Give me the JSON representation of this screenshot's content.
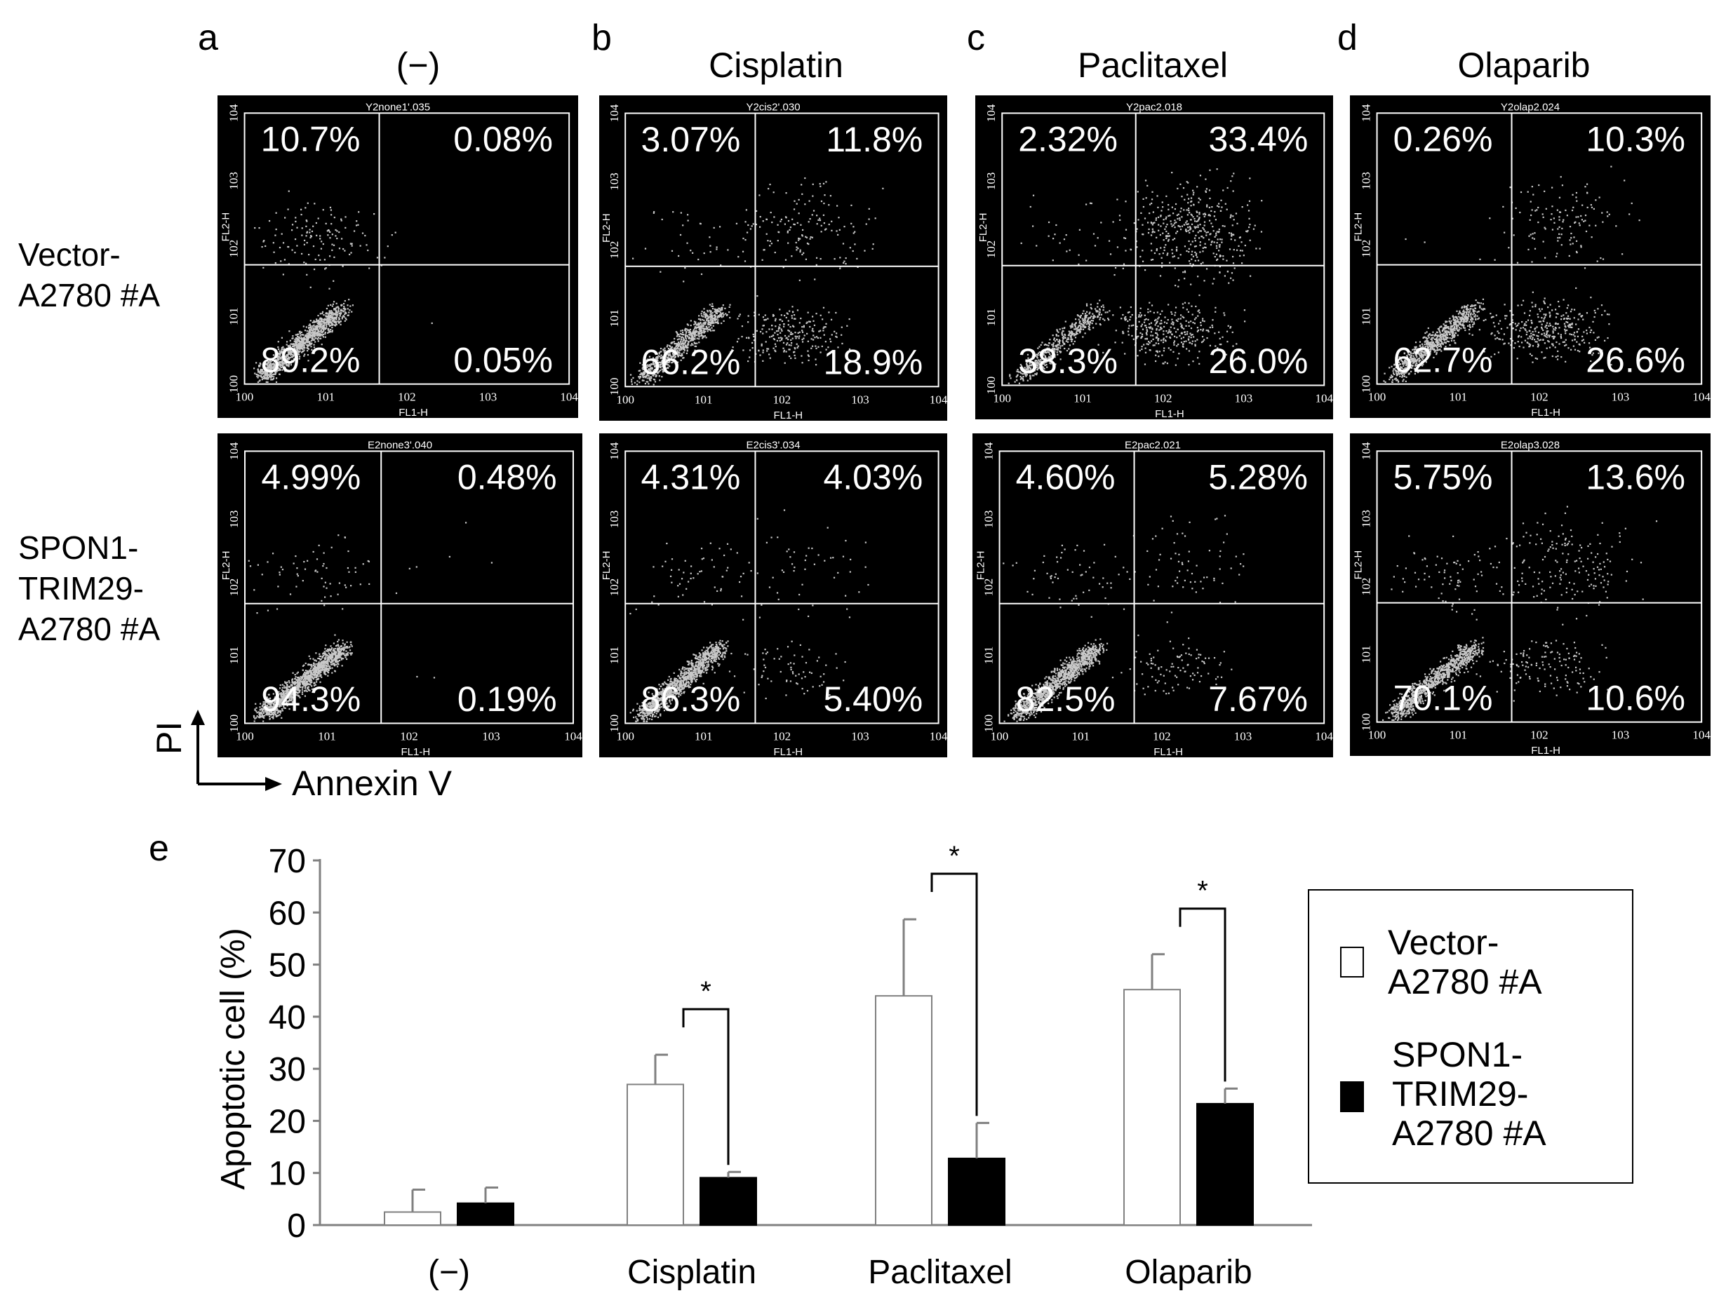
{
  "panel_letters": [
    "a",
    "b",
    "c",
    "d",
    "e"
  ],
  "column_titles": [
    "(−)",
    "Cisplatin",
    "Paclitaxel",
    "Olaparib"
  ],
  "row_labels": [
    "Vector-\nA2780 #A",
    "SPON1-\nTRIM29-\nA2780 #A"
  ],
  "axis_indicator": {
    "y": "PI",
    "x": "Annexin V"
  },
  "flow_axes": {
    "y_label": "FL2-H",
    "x_label": "FL1-H",
    "tick_base": "10",
    "tick_exponents": [
      "0",
      "1",
      "2",
      "3",
      "4"
    ]
  },
  "flow_panels": [
    {
      "sample": "Y2none1'.035",
      "quadrants": {
        "ul": "10.7%",
        "ur": "0.08%",
        "ll": "89.2%",
        "lr": "0.05%"
      }
    },
    {
      "sample": "Y2cis2'.030",
      "quadrants": {
        "ul": "3.07%",
        "ur": "11.8%",
        "ll": "66.2%",
        "lr": "18.9%"
      }
    },
    {
      "sample": "Y2pac2.018",
      "quadrants": {
        "ul": "2.32%",
        "ur": "33.4%",
        "ll": "38.3%",
        "lr": "26.0%"
      }
    },
    {
      "sample": "Y2olap2.024",
      "quadrants": {
        "ul": "0.26%",
        "ur": "10.3%",
        "ll": "62.7%",
        "lr": "26.6%"
      }
    },
    {
      "sample": "E2none3'.040",
      "quadrants": {
        "ul": "4.99%",
        "ur": "0.48%",
        "ll": "94.3%",
        "lr": "0.19%"
      }
    },
    {
      "sample": "E2cis3'.034",
      "quadrants": {
        "ul": "4.31%",
        "ur": "4.03%",
        "ll": "86.3%",
        "lr": "5.40%"
      }
    },
    {
      "sample": "E2pac2.021",
      "quadrants": {
        "ul": "4.60%",
        "ur": "5.28%",
        "ll": "82.5%",
        "lr": "7.67%"
      }
    },
    {
      "sample": "E2olap3.028",
      "quadrants": {
        "ul": "5.75%",
        "ur": "13.6%",
        "ll": "70.1%",
        "lr": "10.6%"
      }
    }
  ],
  "colors": {
    "plot_bg": "#000000",
    "dots": "#c8c8c8",
    "vector_bar": "#ffffff",
    "spon1_bar": "#000000",
    "bar_err": "#808080"
  },
  "chart_data": {
    "type": "bar",
    "title": "",
    "xlabel": "",
    "ylabel": "Apoptotic cell (%)",
    "ylim": [
      0,
      70
    ],
    "yticks": [
      "0",
      "10",
      "20",
      "30",
      "40",
      "50",
      "60",
      "70"
    ],
    "categories": [
      "(−)",
      "Cisplatin",
      "Paclitaxel",
      "Olaparib"
    ],
    "series": [
      {
        "name": "Vector-\nA2780 #A",
        "values": [
          2.5,
          27.0,
          44.0,
          45.2
        ],
        "errors": [
          4.3,
          5.7,
          14.7,
          6.8
        ]
      },
      {
        "name": "SPON1-\nTRIM29-\nA2780 #A",
        "values": [
          4.2,
          9.1,
          12.8,
          23.3
        ],
        "errors": [
          3.0,
          1.1,
          6.8,
          2.9
        ]
      }
    ],
    "significance": [
      {
        "category": "Cisplatin",
        "label": "*"
      },
      {
        "category": "Paclitaxel",
        "label": "*"
      },
      {
        "category": "Olaparib",
        "label": "*"
      }
    ]
  }
}
